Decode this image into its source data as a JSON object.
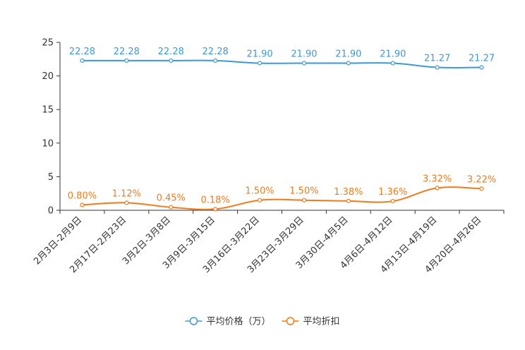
{
  "chart_data": {
    "type": "line",
    "categories": [
      "2月3日-2月9日",
      "2月17日-2月23日",
      "3月2日-3月8日",
      "3月9日-3月15日",
      "3月16日-3月22日",
      "3月23日-3月29日",
      "3月30日-4月5日",
      "4月6日-4月12日",
      "4月13日-4月19日",
      "4月20日-4月26日"
    ],
    "ylim": [
      0,
      25
    ],
    "yticks": [
      0,
      5,
      10,
      15,
      20,
      25
    ],
    "series": [
      {
        "name": "平均价格（万）",
        "color": "#3a9ad9",
        "values": [
          22.28,
          22.28,
          22.28,
          22.28,
          21.9,
          21.9,
          21.9,
          21.9,
          21.27,
          21.27
        ],
        "labels": [
          "22.28",
          "22.28",
          "22.28",
          "22.28",
          "21.90",
          "21.90",
          "21.90",
          "21.90",
          "21.27",
          "21.27"
        ]
      },
      {
        "name": "平均折扣",
        "color": "#f07a1a",
        "values": [
          0.8,
          1.12,
          0.45,
          0.18,
          1.5,
          1.5,
          1.38,
          1.36,
          3.32,
          3.22
        ],
        "labels": [
          "0.80%",
          "1.12%",
          "0.45%",
          "0.18%",
          "1.50%",
          "1.50%",
          "1.38%",
          "1.36%",
          "3.32%",
          "3.22%"
        ]
      }
    ],
    "legend_position": "bottom-center"
  }
}
